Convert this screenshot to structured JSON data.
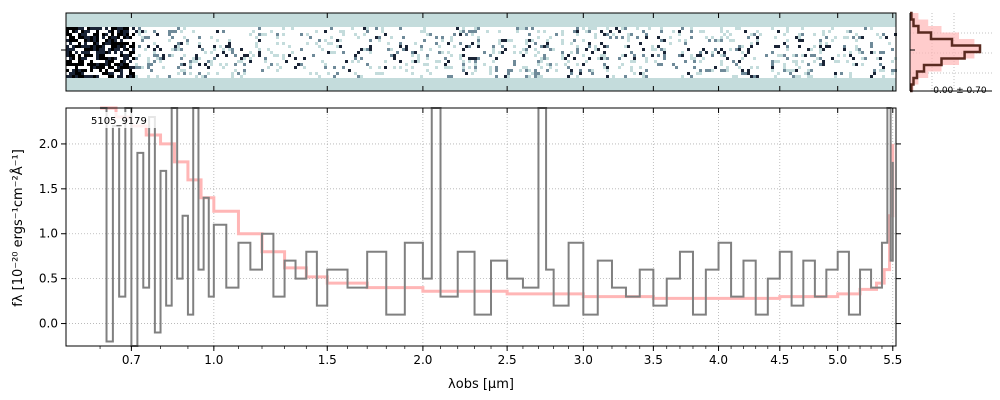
{
  "chart_data": [
    {
      "type": "image",
      "panel": "2d-spectrum",
      "colormap": [
        "#c4dcdc",
        "#ffffff",
        "#6f8a99",
        "#1a2436",
        "#000000"
      ]
    },
    {
      "type": "histogram",
      "panel": "pixel-distribution",
      "annotation": "-0.00 ± 0.70",
      "bins": [
        -3,
        -2.5,
        -2,
        -1.5,
        -1,
        -0.5,
        0,
        0.5,
        1,
        1.5,
        2,
        2.5,
        3
      ],
      "data_counts": [
        0.02,
        0.05,
        0.1,
        0.2,
        0.45,
        0.78,
        1.0,
        0.6,
        0.3,
        0.12,
        0.05,
        0.02
      ],
      "model_counts": [
        0.05,
        0.12,
        0.26,
        0.45,
        0.7,
        0.92,
        1.0,
        0.92,
        0.7,
        0.45,
        0.26,
        0.12
      ]
    },
    {
      "type": "line",
      "panel": "1d-spectrum",
      "label": "5105_9179",
      "xlabel": "λobs [μm]",
      "ylabel": "fλ [10⁻²⁰ ergs⁻¹cm⁻²Å⁻¹]",
      "ylim": [
        -0.25,
        2.4
      ],
      "yticks": [
        0.0,
        0.5,
        1.0,
        1.5,
        2.0
      ],
      "ytick_labels": [
        "0.0",
        "0.5",
        "1.0",
        "1.5",
        "2.0"
      ],
      "xticks": [
        0.7,
        1.0,
        1.5,
        2.0,
        2.5,
        3.0,
        3.5,
        4.0,
        4.5,
        5.0,
        5.5
      ],
      "xtick_labels": [
        "0.7",
        "1.0",
        "1.5",
        "2.0",
        "2.5",
        "3.0",
        "3.5",
        "4.0",
        "4.5",
        "5.0",
        "5.5"
      ],
      "grid": true,
      "series": [
        {
          "role": "data",
          "color": "#808080",
          "x": [
            0.6,
            0.62,
            0.64,
            0.66,
            0.68,
            0.7,
            0.72,
            0.74,
            0.76,
            0.78,
            0.8,
            0.82,
            0.84,
            0.86,
            0.88,
            0.9,
            0.92,
            0.94,
            0.96,
            0.98,
            1.0,
            1.05,
            1.1,
            1.15,
            1.2,
            1.25,
            1.3,
            1.35,
            1.4,
            1.45,
            1.5,
            1.6,
            1.7,
            1.8,
            1.9,
            2.0,
            2.05,
            2.1,
            2.2,
            2.3,
            2.4,
            2.5,
            2.6,
            2.7,
            2.75,
            2.8,
            2.9,
            3.0,
            3.1,
            3.2,
            3.3,
            3.4,
            3.5,
            3.6,
            3.7,
            3.8,
            3.9,
            4.0,
            4.1,
            4.2,
            4.3,
            4.4,
            4.5,
            4.6,
            4.7,
            4.8,
            4.9,
            5.0,
            5.1,
            5.2,
            5.3,
            5.4,
            5.45,
            5.48,
            5.5
          ],
          "y": [
            2.4,
            -0.2,
            2.2,
            0.3,
            2.4,
            -0.25,
            1.9,
            0.4,
            2.3,
            -0.1,
            1.7,
            0.2,
            2.4,
            0.5,
            1.2,
            0.1,
            2.4,
            0.6,
            1.4,
            0.3,
            1.1,
            0.4,
            0.9,
            0.6,
            1.0,
            0.3,
            0.7,
            0.5,
            0.8,
            0.2,
            0.6,
            0.4,
            0.8,
            0.1,
            0.9,
            0.5,
            2.4,
            0.3,
            0.8,
            0.1,
            0.7,
            0.5,
            0.4,
            2.4,
            0.6,
            0.2,
            0.9,
            0.1,
            0.7,
            0.4,
            0.3,
            0.6,
            0.2,
            0.5,
            0.8,
            0.1,
            0.6,
            0.9,
            0.3,
            0.7,
            0.1,
            0.5,
            0.8,
            0.2,
            0.7,
            0.3,
            0.6,
            0.8,
            0.1,
            0.6,
            0.4,
            0.9,
            2.4,
            0.7,
            1.8
          ]
        },
        {
          "role": "model",
          "color": "#ffb6b6",
          "x": [
            0.6,
            0.65,
            0.7,
            0.75,
            0.8,
            0.85,
            0.9,
            0.95,
            1.0,
            1.1,
            1.2,
            1.3,
            1.4,
            1.5,
            1.7,
            2.0,
            2.5,
            3.0,
            3.5,
            4.0,
            4.5,
            5.0,
            5.2,
            5.35,
            5.42,
            5.47,
            5.5
          ],
          "y": [
            2.4,
            2.3,
            2.2,
            2.1,
            2.0,
            1.8,
            1.6,
            1.4,
            1.25,
            1.0,
            0.8,
            0.62,
            0.52,
            0.45,
            0.4,
            0.36,
            0.33,
            0.3,
            0.28,
            0.28,
            0.3,
            0.33,
            0.38,
            0.45,
            0.6,
            1.2,
            2.0
          ]
        }
      ]
    }
  ]
}
